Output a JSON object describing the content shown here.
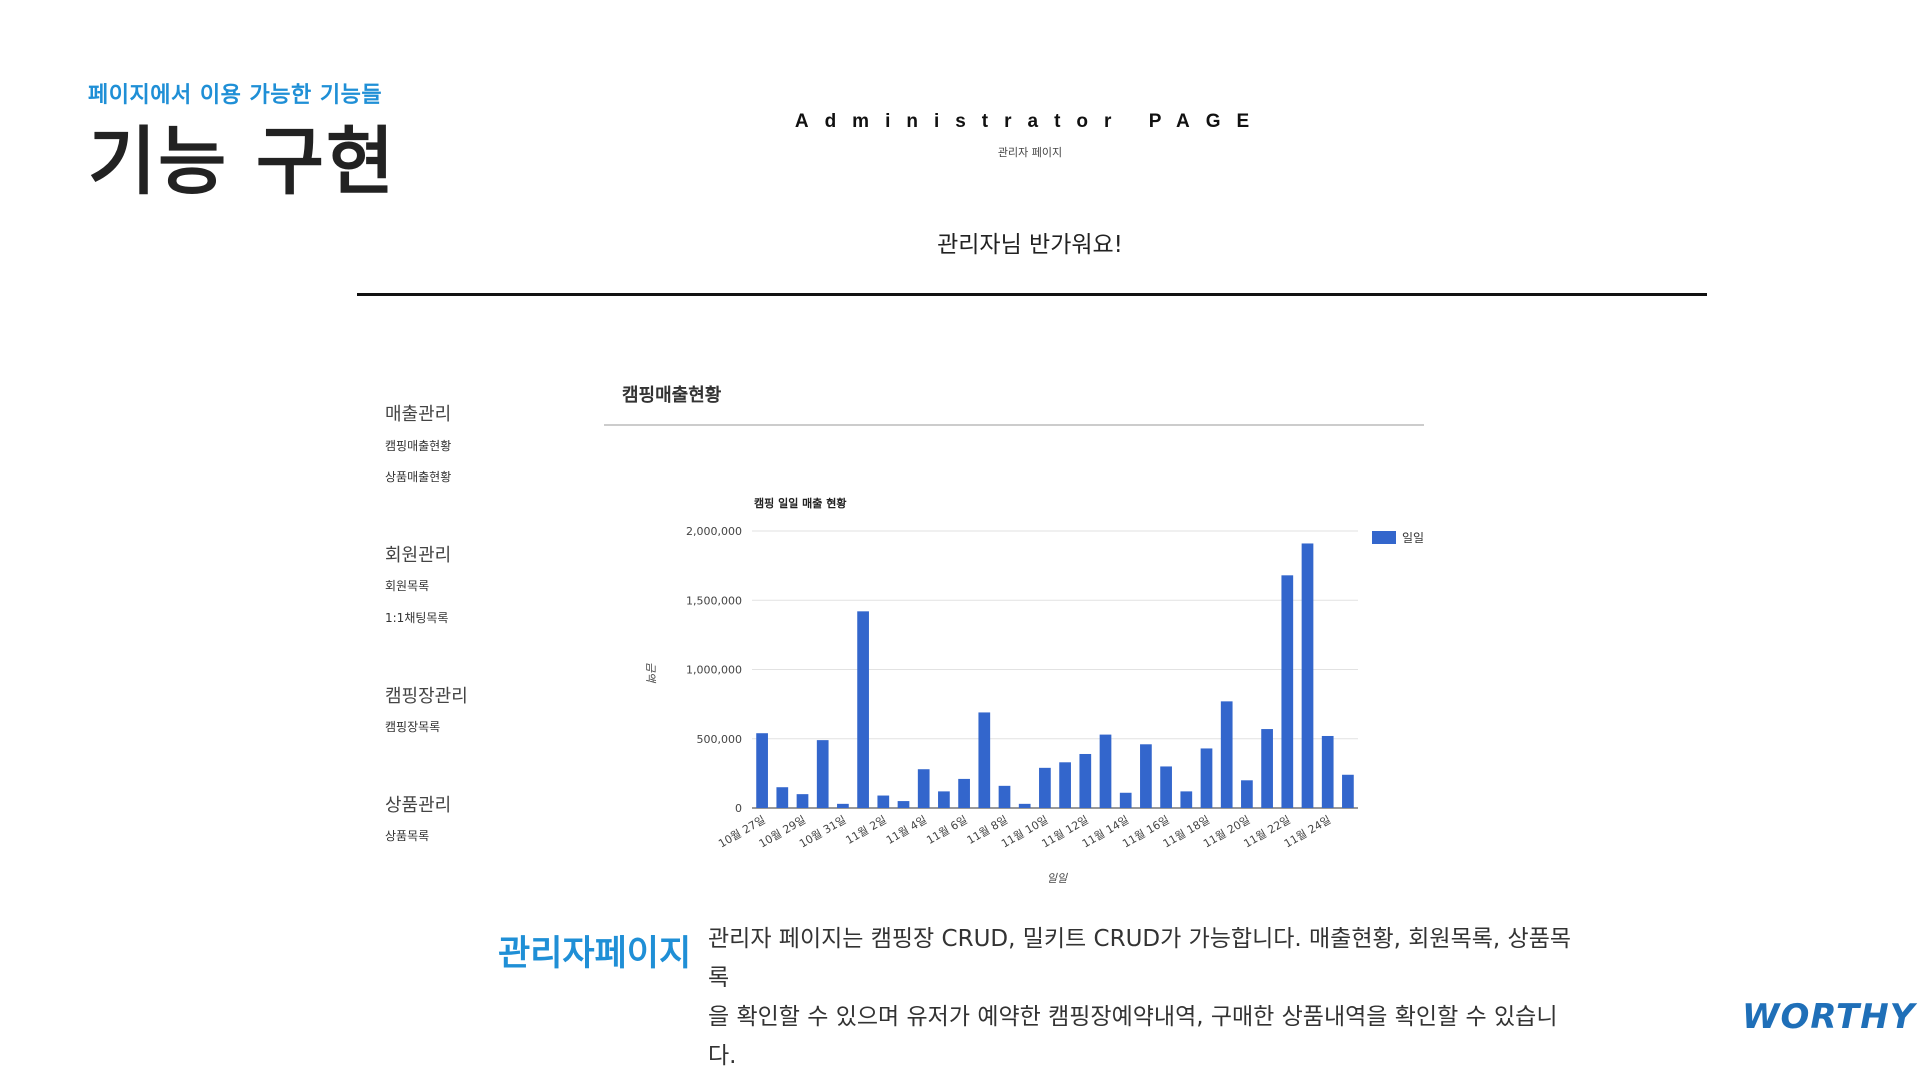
{
  "slide": {
    "subtitle": "페이지에서 이용 가능한 기능들",
    "title": "기능 구현"
  },
  "header": {
    "title": "Administrator PAGE",
    "subtitle": "관리자 페이지",
    "welcome": "관리자님 반가워요!"
  },
  "sidebar": {
    "groups": [
      {
        "heading": "매출관리",
        "items": [
          "캠핑매출현황",
          "상품매출현황"
        ]
      },
      {
        "heading": "회원관리",
        "items": [
          "회원목록",
          "1:1채팅목록"
        ]
      },
      {
        "heading": "캠핑장관리",
        "items": [
          "캠핑장목록"
        ]
      },
      {
        "heading": "상품관리",
        "items": [
          "상품목록"
        ]
      }
    ]
  },
  "panel": {
    "title": "캠핑매출현황"
  },
  "colors": {
    "accent": "#1f8fd6",
    "bar": "#3366cc",
    "logo": "#1f6fb8"
  },
  "chart_data": {
    "type": "bar",
    "title": "캠핑 일일 매출 현황",
    "xlabel": "일일",
    "ylabel": "금액",
    "ylim": [
      0,
      2000000
    ],
    "yticks": [
      "0",
      "500,000",
      "1,000,000",
      "1,500,000",
      "2,000,000"
    ],
    "ytick_values": [
      0,
      500000,
      1000000,
      1500000,
      2000000
    ],
    "categories": [
      "10월 27일",
      "10월 28일",
      "10월 29일",
      "10월 30일",
      "10월 31일",
      "11월 1일",
      "11월 2일",
      "11월 3일",
      "11월 4일",
      "11월 5일",
      "11월 6일",
      "11월 7일",
      "11월 8일",
      "11월 9일",
      "11월 10일",
      "11월 11일",
      "11월 12일",
      "11월 13일",
      "11월 14일",
      "11월 15일",
      "11월 16일",
      "11월 17일",
      "11월 18일",
      "11월 19일",
      "11월 20일",
      "11월 21일",
      "11월 22일",
      "11월 23일",
      "11월 24일",
      "11월 25일"
    ],
    "xtick_labels": [
      "10월 27일",
      "10월 29일",
      "10월 31일",
      "11월 2일",
      "11월 4일",
      "11월 6일",
      "11월 8일",
      "11월 10일",
      "11월 12일",
      "11월 14일",
      "11월 16일",
      "11월 18일",
      "11월 20일",
      "11월 22일",
      "11월 24일"
    ],
    "series": [
      {
        "name": "일일",
        "values": [
          540000,
          150000,
          100000,
          490000,
          30000,
          1420000,
          90000,
          50000,
          280000,
          120000,
          210000,
          690000,
          160000,
          30000,
          290000,
          330000,
          390000,
          530000,
          110000,
          460000,
          300000,
          120000,
          430000,
          770000,
          200000,
          570000,
          1680000,
          1910000,
          520000,
          240000
        ]
      }
    ],
    "legend": "right",
    "grid": true
  },
  "footer": {
    "label": "관리자페이지",
    "description_lines": [
      "관리자 페이지는 캠핑장 CRUD, 밀키트 CRUD가 가능합니다. 매출현황, 회원목록, 상품목록",
      "을 확인할 수 있으며 유저가 예약한 캠핑장예약내역, 구매한 상품내역을 확인할 수 있습니",
      "다."
    ]
  },
  "brand": {
    "logo_text": "WORTHY"
  }
}
